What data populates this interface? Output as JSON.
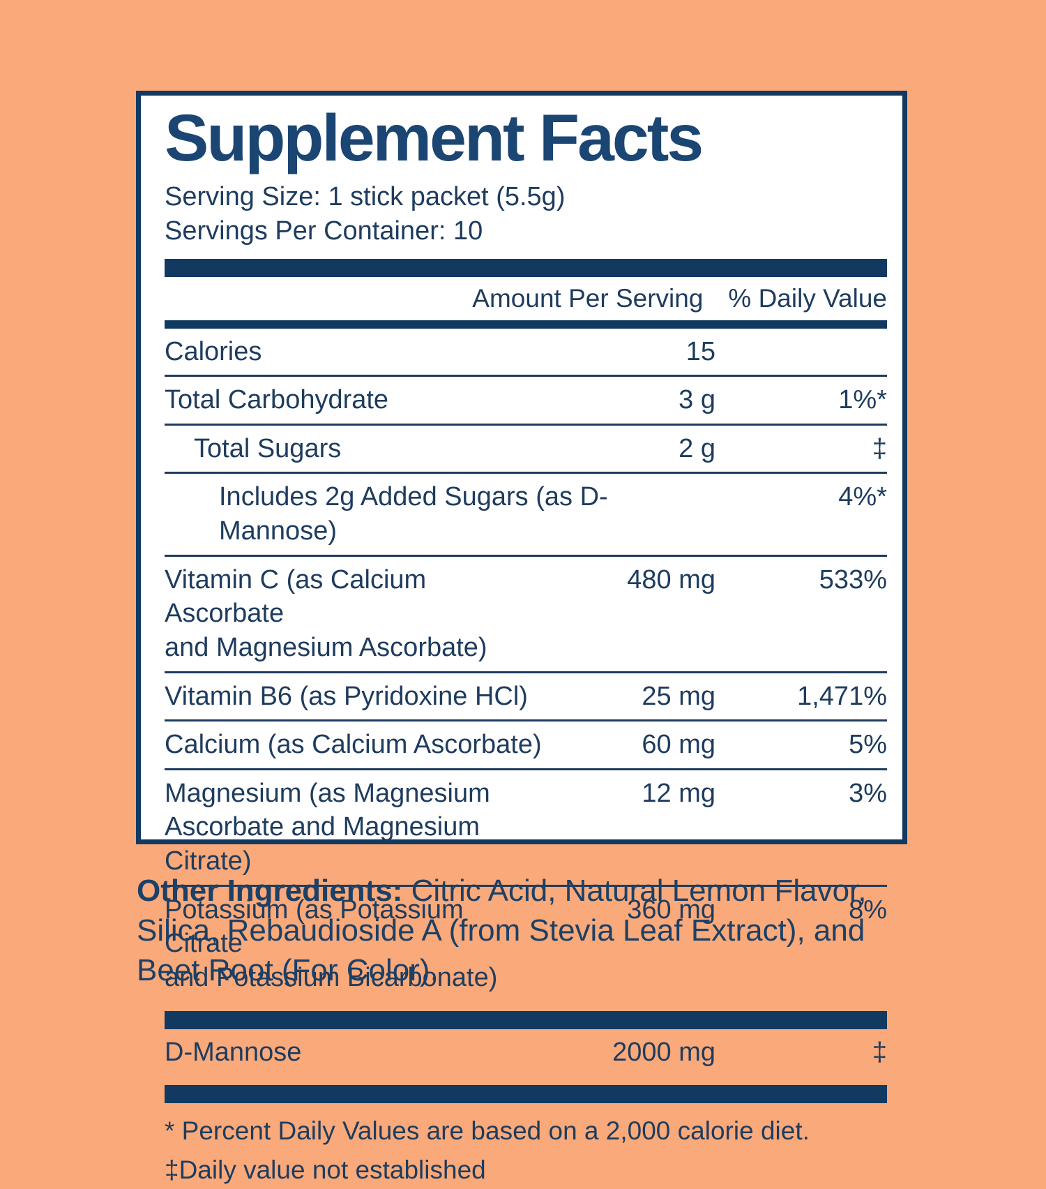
{
  "colors": {
    "background": "#f9a97a",
    "navy_bar": "#123a61",
    "title_navy": "#1b4572",
    "text_navy": "#1e3c5e",
    "panel_bg": "#ffffff"
  },
  "panel": {
    "title": "Supplement Facts",
    "serving_size": "Serving Size: 1 stick packet (5.5g)",
    "servings_per_container": "Servings Per Container: 10",
    "column_headers": {
      "amount": "Amount Per Serving",
      "daily_value": "% Daily Value"
    },
    "rows": [
      {
        "name": "Calories",
        "amount": "15",
        "dv": "",
        "indent": 0
      },
      {
        "name": "Total Carbohydrate",
        "amount": "3 g",
        "dv": "1%*",
        "indent": 0
      },
      {
        "name": "Total Sugars",
        "amount": "2 g",
        "dv": "‡",
        "indent": 1
      },
      {
        "name": "Includes 2g Added Sugars (as D-Mannose)",
        "amount": "",
        "dv": "4%*",
        "indent": 2
      },
      {
        "name": "Vitamin C (as Calcium Ascorbate\nand Magnesium Ascorbate)",
        "amount": "480 mg",
        "dv": "533%",
        "indent": 0
      },
      {
        "name": "Vitamin B6 (as Pyridoxine HCl)",
        "amount": "25 mg",
        "dv": "1,471%",
        "indent": 0
      },
      {
        "name": "Calcium (as Calcium Ascorbate)",
        "amount": "60 mg",
        "dv": "5%",
        "indent": 0
      },
      {
        "name": "Magnesium (as Magnesium\nAscorbate and Magnesium Citrate)",
        "amount": "12 mg",
        "dv": "3%",
        "indent": 0
      },
      {
        "name": "Potassium (as Potassium Citrate\nand Potassium Bicarbonate)",
        "amount": "360 mg",
        "dv": "8%",
        "indent": 0
      }
    ],
    "secondary_rows": [
      {
        "name": "D-Mannose",
        "amount": "2000 mg",
        "dv": "‡",
        "indent": 0
      }
    ],
    "footnotes": [
      "* Percent Daily Values are based on a 2,000 calorie diet.",
      "‡Daily value not established"
    ]
  },
  "other_ingredients": {
    "label": "Other Ingredients:",
    "text": " Citric Acid, Natural Lemon Flavor,\nSilica, Rebaudioside A (from Stevia Leaf Extract), and\nBeet Root (For Color)."
  }
}
